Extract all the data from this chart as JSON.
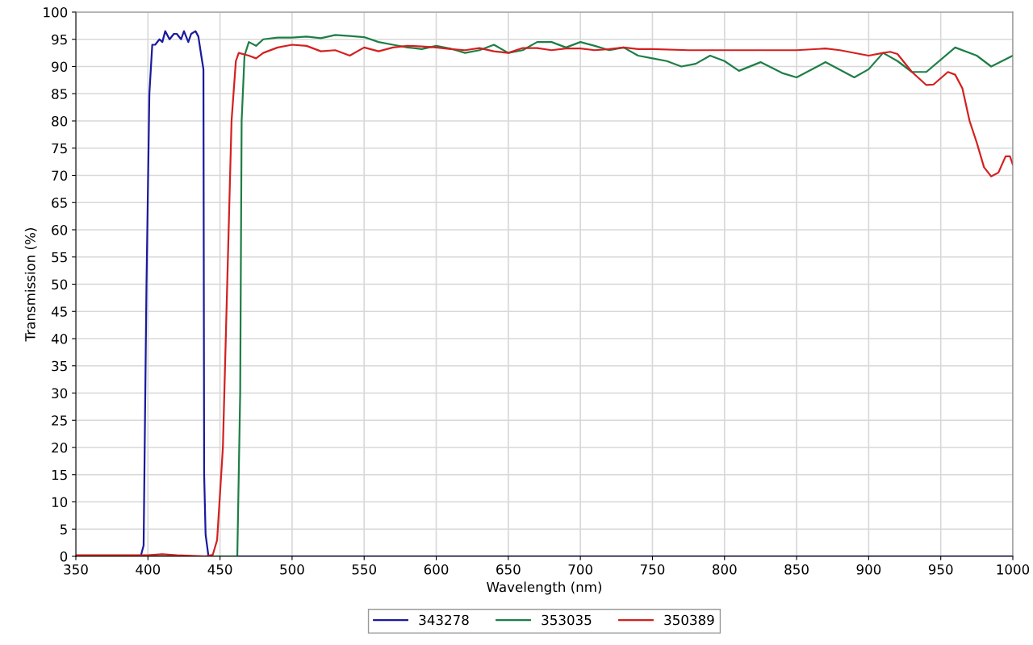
{
  "chart_data": {
    "type": "line",
    "xlabel": "Wavelength (nm)",
    "ylabel": "Transmission (%)",
    "xlim": [
      350,
      1000
    ],
    "xticks": [
      350,
      400,
      450,
      500,
      550,
      600,
      650,
      700,
      750,
      800,
      850,
      900,
      950,
      1000
    ],
    "ylim": [
      0,
      100
    ],
    "yticks": [
      0,
      5,
      10,
      15,
      20,
      25,
      30,
      35,
      40,
      45,
      50,
      55,
      60,
      65,
      70,
      75,
      80,
      85,
      90,
      95,
      100
    ],
    "grid": true,
    "legend": "bottom",
    "marker": "none",
    "line_style": "solid",
    "series": [
      {
        "name": "343278",
        "color": "#1a1aa0",
        "x": [
          350,
          395,
          397,
          399,
          401,
          403,
          405,
          408,
          410,
          412,
          415,
          418,
          420,
          423,
          425,
          428,
          430,
          433,
          435,
          437,
          438.5,
          439,
          440,
          442,
          1000
        ],
        "values": [
          0,
          0,
          2,
          50,
          85,
          94,
          94,
          95,
          94.5,
          96.5,
          95,
          96,
          96,
          95,
          96.5,
          94.5,
          96,
          96.5,
          95.5,
          92,
          89.5,
          15,
          4,
          0,
          0
        ]
      },
      {
        "name": "353035",
        "color": "#1e7e46",
        "x": [
          350,
          462,
          464,
          465,
          467,
          470,
          475,
          480,
          490,
          500,
          510,
          520,
          530,
          540,
          550,
          560,
          570,
          580,
          590,
          600,
          610,
          620,
          630,
          640,
          650,
          660,
          670,
          680,
          690,
          700,
          710,
          720,
          730,
          740,
          750,
          760,
          770,
          780,
          790,
          800,
          810,
          825,
          840,
          850,
          870,
          890,
          900,
          910,
          920,
          930,
          940,
          960,
          975,
          985,
          1000
        ],
        "values": [
          0,
          0,
          30,
          80,
          92,
          94.5,
          93.8,
          95,
          95.3,
          95.3,
          95.5,
          95.2,
          95.8,
          95.6,
          95.4,
          94.5,
          94,
          93.5,
          93.2,
          93.8,
          93.3,
          92.5,
          93,
          94,
          92.5,
          93,
          94.5,
          94.5,
          93.5,
          94.5,
          93.8,
          93,
          93.5,
          92,
          91.5,
          91,
          90,
          90.5,
          92,
          91,
          89.2,
          90.8,
          88.8,
          88,
          90.8,
          88,
          89.5,
          92.5,
          91,
          89,
          89,
          93.5,
          92,
          90,
          92
        ]
      },
      {
        "name": "350389",
        "color": "#d42020",
        "x": [
          350,
          400,
          410,
          420,
          440,
          445,
          448,
          452,
          455,
          458,
          461,
          463,
          470,
          475,
          480,
          490,
          500,
          510,
          520,
          530,
          540,
          550,
          560,
          570,
          580,
          590,
          600,
          610,
          620,
          630,
          640,
          650,
          660,
          670,
          680,
          690,
          700,
          710,
          720,
          730,
          740,
          750,
          775,
          800,
          825,
          850,
          870,
          880,
          900,
          910,
          915,
          920,
          930,
          940,
          945,
          955,
          960,
          965,
          970,
          975,
          980,
          985,
          990,
          995,
          998,
          1000
        ],
        "values": [
          0.2,
          0.2,
          0.4,
          0.2,
          0,
          0.3,
          3,
          20,
          50,
          80,
          91,
          92.5,
          92,
          91.5,
          92.5,
          93.5,
          94,
          93.8,
          92.8,
          93,
          92,
          93.5,
          92.8,
          93.5,
          93.8,
          93.7,
          93.5,
          93.2,
          93,
          93.4,
          92.8,
          92.5,
          93.4,
          93.4,
          93,
          93.3,
          93.3,
          93,
          93.2,
          93.5,
          93.2,
          93.2,
          93,
          93,
          93,
          93,
          93.3,
          93,
          92,
          92.5,
          92.7,
          92.3,
          89,
          86.6,
          86.7,
          89,
          88.5,
          86,
          80,
          76,
          71.5,
          69.8,
          70.5,
          73.5,
          73.5,
          72
        ]
      }
    ]
  }
}
